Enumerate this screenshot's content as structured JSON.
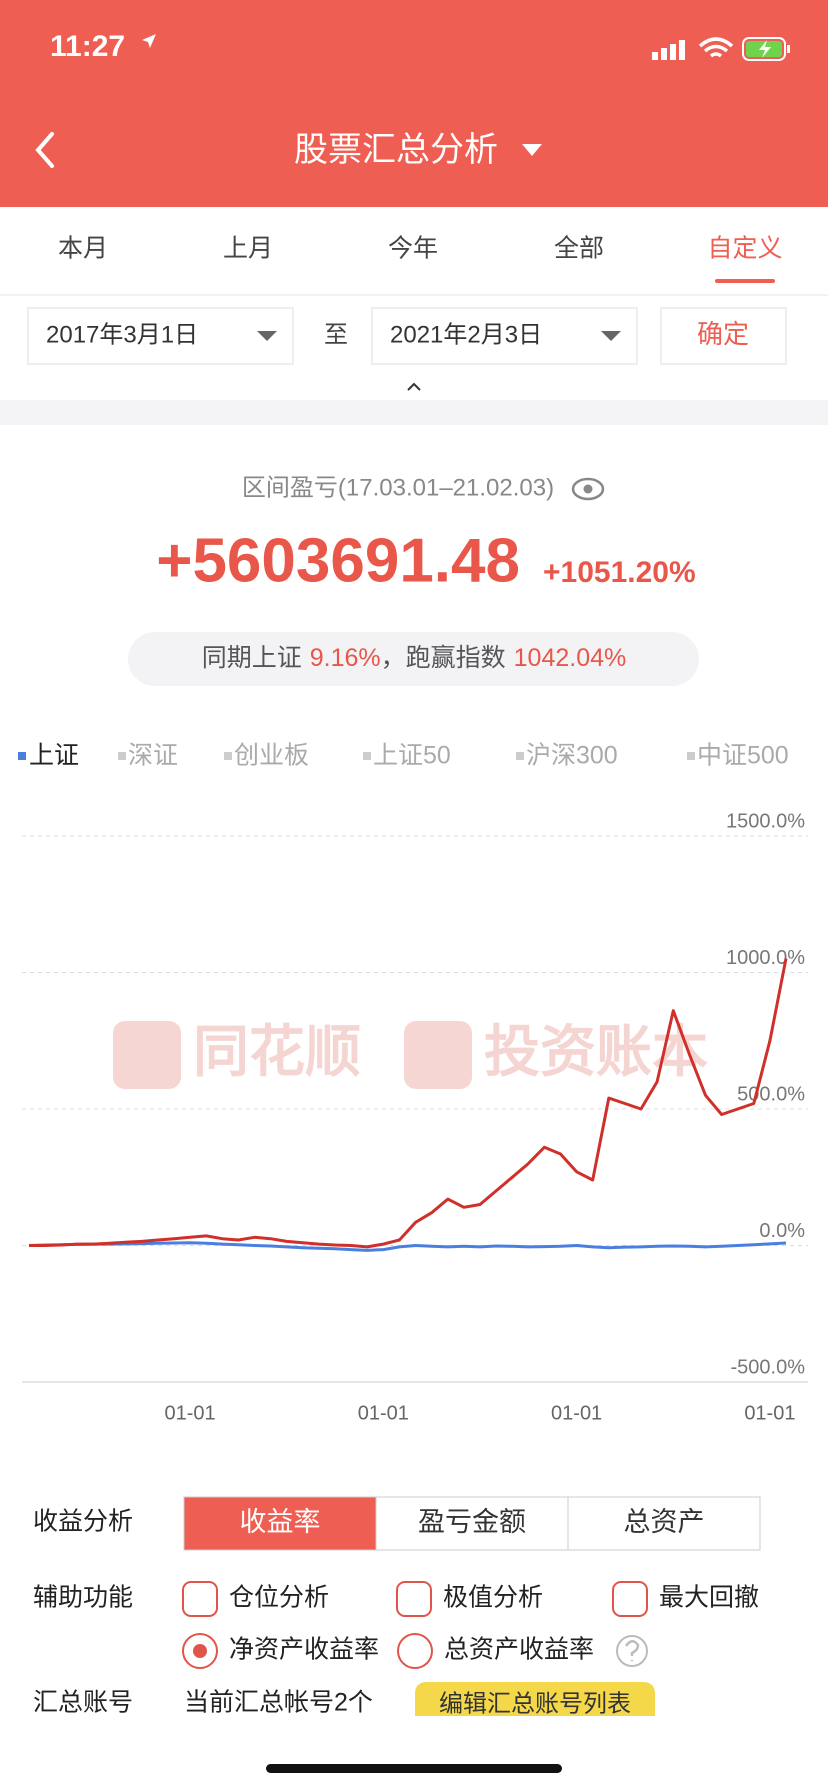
{
  "status_bar": {
    "time": "11:27"
  },
  "nav": {
    "title": "股票汇总分析"
  },
  "period_tabs": [
    "本月",
    "上月",
    "今年",
    "全部",
    "自定义"
  ],
  "date_filter": {
    "start": "2017年3月1日",
    "separator": "至",
    "end": "2021年2月3日",
    "confirm": "确定"
  },
  "summary": {
    "label": "区间盈亏(17.03.01–21.02.03)",
    "amount": "+5603691.48",
    "percent": "+1051.20%",
    "compare": {
      "label": "同期上证",
      "index_return": "9.16%",
      "beat_label": "，跑赢指数",
      "beat_value": "1042.04%"
    }
  },
  "index_tabs": [
    "深证",
    "创业板",
    "上证50",
    "沪深300",
    "中证500"
  ],
  "watermark": [
    "同花顺",
    "投资账本"
  ],
  "chart_data": {
    "type": "line",
    "categories": [
      null,
      null,
      null,
      null,
      null,
      null,
      null,
      null,
      null,
      null,
      "01-01",
      null,
      null,
      null,
      null,
      null,
      null,
      null,
      null,
      null,
      null,
      null,
      "01-01",
      null,
      null,
      null,
      null,
      null,
      null,
      null,
      null,
      null,
      null,
      null,
      "01-01",
      null,
      null,
      null,
      null,
      null,
      null,
      null,
      null,
      null,
      null,
      null,
      "01-01",
      null
    ],
    "series": [
      {
        "color": "#d0302a",
        "values": [
          0,
          0,
          2,
          5,
          5,
          8,
          12,
          15,
          20,
          25,
          30,
          35,
          25,
          20,
          30,
          25,
          15,
          10,
          5,
          2,
          0,
          -5,
          5,
          20,
          85,
          120,
          170,
          140,
          150,
          200,
          250,
          300,
          360,
          335,
          270,
          240,
          540,
          520,
          500,
          600,
          860,
          700,
          550,
          480,
          500,
          520,
          750,
          1051.2
        ]
      },
      {
        "name": "上证",
        "color": "#4a7fe0",
        "values": [
          0,
          2,
          3,
          4,
          5,
          5,
          6,
          7,
          8,
          9,
          10,
          8,
          5,
          3,
          0,
          -2,
          -5,
          -8,
          -10,
          -12,
          -15,
          -18,
          -15,
          -5,
          0,
          -3,
          -5,
          -3,
          -5,
          -2,
          -3,
          -5,
          -4,
          -3,
          0,
          -5,
          -8,
          -6,
          -5,
          -3,
          -2,
          -3,
          -5,
          -3,
          0,
          3,
          6,
          9.16
        ]
      }
    ],
    "ylim": [
      -500,
      1500
    ],
    "yticks": [
      {
        "value": 1500,
        "label": "1500.0%"
      },
      {
        "value": 1000,
        "label": "1000.0%"
      },
      {
        "value": 500,
        "label": "500.0%"
      },
      {
        "value": 0,
        "label": "0.0%"
      },
      {
        "value": -500,
        "label": "-500.0%"
      }
    ],
    "grid": true
  },
  "controls": {
    "profit_label": "收益分析",
    "profit_modes": [
      "收益率",
      "盈亏金额",
      "总资产"
    ],
    "assist_label": "辅助功能",
    "assist_options": [
      "仓位分析",
      "极值分析",
      "最大回撤"
    ],
    "return_options": [
      "净资产收益率",
      "总资产收益率"
    ],
    "account_label": "汇总账号",
    "account_info": "当前汇总帐号2个",
    "account_button": "编辑汇总账号列表"
  }
}
